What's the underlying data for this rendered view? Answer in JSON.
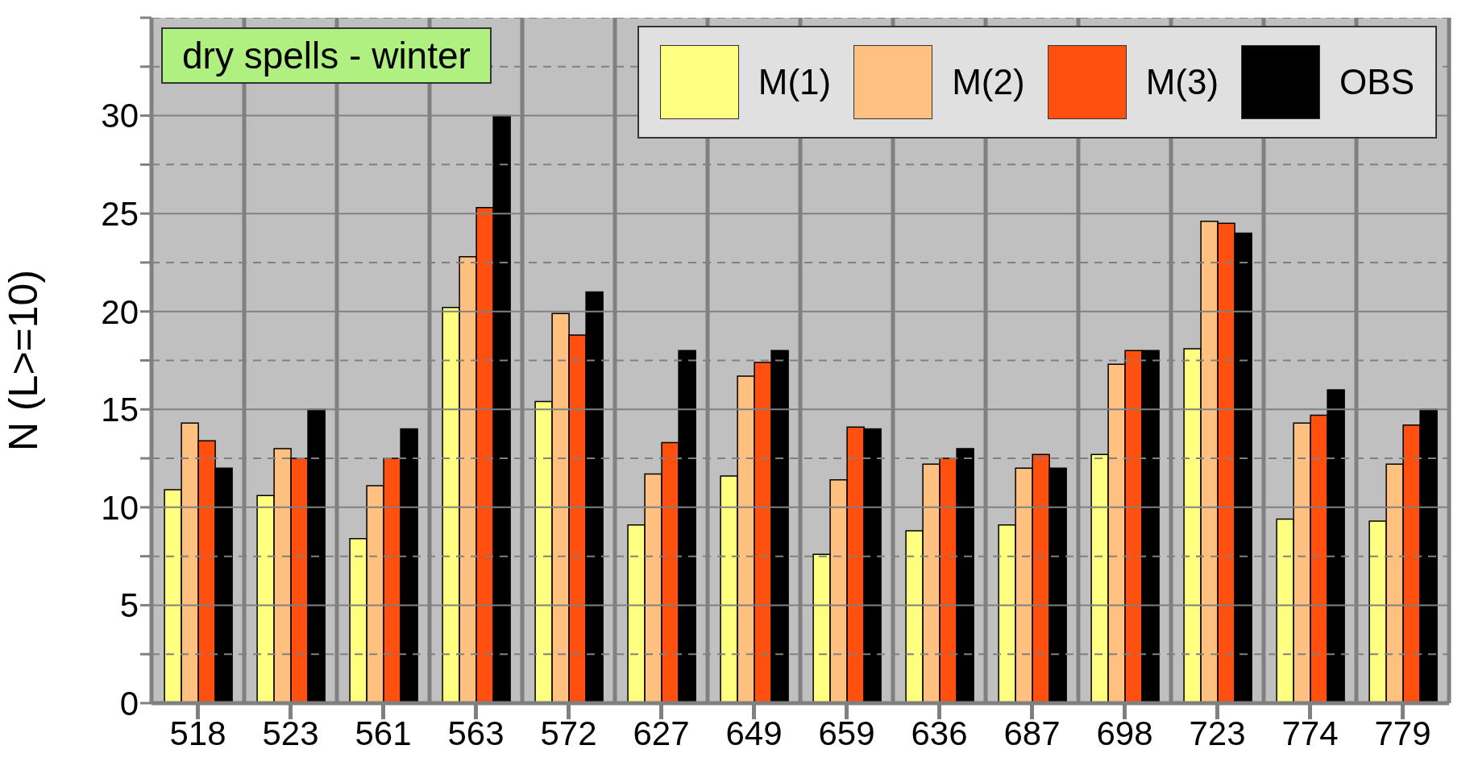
{
  "chart_data": {
    "type": "bar",
    "title": "dry spells - winter",
    "ylabel": "N (L>=10)",
    "categories": [
      "518",
      "523",
      "561",
      "563",
      "572",
      "627",
      "649",
      "659",
      "636",
      "687",
      "698",
      "723",
      "774",
      "779"
    ],
    "series": [
      {
        "name": "M(1)",
        "color": "#ffff80",
        "values": [
          10.9,
          10.6,
          8.4,
          20.2,
          15.4,
          9.1,
          11.6,
          7.6,
          8.8,
          9.1,
          12.7,
          18.1,
          9.4,
          9.3
        ]
      },
      {
        "name": "M(2)",
        "color": "#ffc080",
        "values": [
          14.3,
          13.0,
          11.1,
          22.8,
          19.9,
          11.7,
          16.7,
          11.4,
          12.2,
          12.0,
          17.3,
          24.6,
          14.3,
          12.2
        ]
      },
      {
        "name": "M(3)",
        "color": "#ff5010",
        "values": [
          13.4,
          12.5,
          12.5,
          25.3,
          18.8,
          13.3,
          17.4,
          14.1,
          12.5,
          12.7,
          18.0,
          24.5,
          14.7,
          14.2
        ]
      },
      {
        "name": "OBS",
        "color": "#000000",
        "values": [
          12,
          15,
          14,
          30,
          21,
          18,
          18,
          14,
          13,
          12,
          18,
          24,
          16,
          15
        ]
      }
    ],
    "ylim": [
      0,
      35
    ],
    "yticks": [
      0,
      {
        "value": 2.5,
        "label": null
      },
      5,
      {
        "value": 7.5,
        "label": null
      },
      10,
      {
        "value": 12.5,
        "label": null
      },
      15,
      {
        "value": 17.5,
        "label": null
      },
      20,
      {
        "value": 22.5,
        "label": null
      },
      25,
      {
        "value": 27.5,
        "label": null
      },
      30,
      {
        "value": 32.5,
        "label": null
      },
      {
        "value": 35,
        "label": null
      }
    ],
    "grid": true,
    "legend": "top right"
  }
}
